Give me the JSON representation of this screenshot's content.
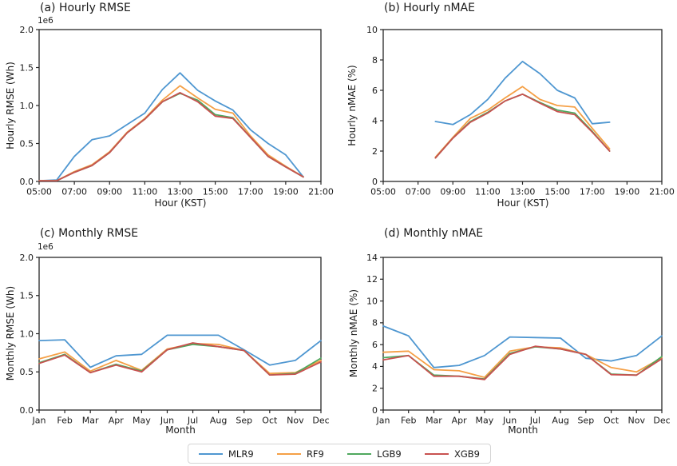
{
  "legend": {
    "items": [
      {
        "label": "MLR9",
        "color": "#4f97d1"
      },
      {
        "label": "RF9",
        "color": "#f5a046"
      },
      {
        "label": "LGB9",
        "color": "#4fa85e"
      },
      {
        "label": "XGB9",
        "color": "#c85250"
      }
    ]
  },
  "chart_data": [
    {
      "type": "line",
      "title": "(a) Hourly RMSE",
      "xlabel": "Hour (KST)",
      "ylabel": "Hourly RMSE (Wh)",
      "y_offset_label": "1e6",
      "xlim": [
        5,
        21
      ],
      "ylim": [
        0,
        2
      ],
      "grid": false,
      "xticks": [
        5,
        7,
        9,
        11,
        13,
        15,
        17,
        19,
        21
      ],
      "xtick_labels": [
        "05:00",
        "07:00",
        "09:00",
        "11:00",
        "13:00",
        "15:00",
        "17:00",
        "19:00",
        "21:00"
      ],
      "yticks": [
        0,
        0.5,
        1.0,
        1.5,
        2.0
      ],
      "ytick_labels": [
        "0.0",
        "0.5",
        "1.0",
        "1.5",
        "2.0"
      ],
      "x": [
        5,
        6,
        7,
        8,
        9,
        10,
        11,
        12,
        13,
        14,
        15,
        16,
        17,
        18,
        19,
        20
      ],
      "series": [
        {
          "name": "MLR9",
          "color": "#4f97d1",
          "values": [
            0.01,
            0.02,
            0.33,
            0.55,
            0.6,
            0.75,
            0.9,
            1.21,
            1.43,
            1.2,
            1.06,
            0.94,
            0.68,
            0.5,
            0.35,
            0.06
          ]
        },
        {
          "name": "RF9",
          "color": "#f5a046",
          "values": [
            0.01,
            0.01,
            0.13,
            0.22,
            0.39,
            0.65,
            0.83,
            1.07,
            1.26,
            1.1,
            0.95,
            0.9,
            0.6,
            0.35,
            0.2,
            0.06
          ]
        },
        {
          "name": "LGB9",
          "color": "#4fa85e",
          "values": [
            0.01,
            0.01,
            0.12,
            0.21,
            0.38,
            0.64,
            0.82,
            1.05,
            1.16,
            1.07,
            0.88,
            0.84,
            0.58,
            0.33,
            0.19,
            0.06
          ]
        },
        {
          "name": "XGB9",
          "color": "#c85250",
          "values": [
            0.01,
            0.01,
            0.12,
            0.21,
            0.38,
            0.64,
            0.82,
            1.05,
            1.17,
            1.05,
            0.86,
            0.83,
            0.58,
            0.33,
            0.19,
            0.06
          ]
        }
      ]
    },
    {
      "type": "line",
      "title": "(b) Hourly nMAE",
      "xlabel": "Hour (KST)",
      "ylabel": "Hourly nMAE (%)",
      "y_offset_label": "",
      "xlim": [
        5,
        21
      ],
      "ylim": [
        0,
        10
      ],
      "grid": false,
      "xticks": [
        5,
        7,
        9,
        11,
        13,
        15,
        17,
        19,
        21
      ],
      "xtick_labels": [
        "05:00",
        "07:00",
        "09:00",
        "11:00",
        "13:00",
        "15:00",
        "17:00",
        "19:00",
        "21:00"
      ],
      "yticks": [
        0,
        2,
        4,
        6,
        8,
        10
      ],
      "ytick_labels": [
        "0",
        "2",
        "4",
        "6",
        "8",
        "10"
      ],
      "x": [
        8,
        9,
        10,
        11,
        12,
        13,
        14,
        15,
        16,
        17,
        18
      ],
      "series": [
        {
          "name": "MLR9",
          "color": "#4f97d1",
          "values": [
            3.95,
            3.75,
            4.4,
            5.4,
            6.8,
            7.9,
            7.1,
            6.0,
            5.5,
            3.8,
            3.9
          ]
        },
        {
          "name": "RF9",
          "color": "#f5a046",
          "values": [
            1.6,
            2.9,
            4.15,
            4.7,
            5.5,
            6.25,
            5.4,
            5.0,
            4.9,
            3.5,
            2.15
          ]
        },
        {
          "name": "LGB9",
          "color": "#4fa85e",
          "values": [
            1.55,
            2.85,
            3.95,
            4.55,
            5.3,
            5.75,
            5.2,
            4.7,
            4.5,
            3.3,
            2.0
          ]
        },
        {
          "name": "XGB9",
          "color": "#c85250",
          "values": [
            1.55,
            2.85,
            3.9,
            4.5,
            5.3,
            5.75,
            5.15,
            4.6,
            4.4,
            3.25,
            2.0
          ]
        }
      ]
    },
    {
      "type": "line",
      "title": "(c) Monthly RMSE",
      "xlabel": "Month",
      "ylabel": "Monthly RMSE (Wh)",
      "y_offset_label": "1e6",
      "xlim": [
        0,
        11
      ],
      "ylim": [
        0,
        2
      ],
      "grid": false,
      "categories": [
        "Jan",
        "Feb",
        "Mar",
        "Apr",
        "May",
        "Jun",
        "Jul",
        "Aug",
        "Sep",
        "Oct",
        "Nov",
        "Dec"
      ],
      "xticks": [
        0,
        1,
        2,
        3,
        4,
        5,
        6,
        7,
        8,
        9,
        10,
        11
      ],
      "xtick_labels": [
        "Jan",
        "Feb",
        "Mar",
        "Apr",
        "May",
        "Jun",
        "Jul",
        "Aug",
        "Sep",
        "Oct",
        "Nov",
        "Dec"
      ],
      "yticks": [
        0,
        0.5,
        1.0,
        1.5,
        2.0
      ],
      "ytick_labels": [
        "0.0",
        "0.5",
        "1.0",
        "1.5",
        "2.0"
      ],
      "x": [
        0,
        1,
        2,
        3,
        4,
        5,
        6,
        7,
        8,
        9,
        10,
        11
      ],
      "series": [
        {
          "name": "MLR9",
          "color": "#4f97d1",
          "values": [
            0.91,
            0.92,
            0.56,
            0.71,
            0.73,
            0.98,
            0.98,
            0.98,
            0.79,
            0.59,
            0.65,
            0.91
          ]
        },
        {
          "name": "RF9",
          "color": "#f5a046",
          "values": [
            0.67,
            0.76,
            0.51,
            0.65,
            0.52,
            0.8,
            0.87,
            0.86,
            0.78,
            0.48,
            0.49,
            0.65
          ]
        },
        {
          "name": "LGB9",
          "color": "#4fa85e",
          "values": [
            0.62,
            0.73,
            0.49,
            0.6,
            0.51,
            0.79,
            0.86,
            0.83,
            0.78,
            0.46,
            0.48,
            0.68
          ]
        },
        {
          "name": "XGB9",
          "color": "#c85250",
          "values": [
            0.61,
            0.72,
            0.49,
            0.59,
            0.5,
            0.79,
            0.88,
            0.83,
            0.78,
            0.46,
            0.47,
            0.63
          ]
        }
      ]
    },
    {
      "type": "line",
      "title": "(d) Monthly nMAE",
      "xlabel": "Month",
      "ylabel": "Monthly nMAE (%)",
      "y_offset_label": "",
      "xlim": [
        0,
        11
      ],
      "ylim": [
        0,
        14
      ],
      "grid": false,
      "categories": [
        "Jan",
        "Feb",
        "Mar",
        "Apr",
        "May",
        "Jun",
        "Jul",
        "Aug",
        "Sep",
        "Oct",
        "Nov",
        "Dec"
      ],
      "xticks": [
        0,
        1,
        2,
        3,
        4,
        5,
        6,
        7,
        8,
        9,
        10,
        11
      ],
      "xtick_labels": [
        "Jan",
        "Feb",
        "Mar",
        "Apr",
        "May",
        "Jun",
        "Jul",
        "Aug",
        "Sep",
        "Oct",
        "Nov",
        "Dec"
      ],
      "yticks": [
        0,
        2,
        4,
        6,
        8,
        10,
        12,
        14
      ],
      "ytick_labels": [
        "0",
        "2",
        "4",
        "6",
        "8",
        "10",
        "12",
        "14"
      ],
      "x": [
        0,
        1,
        2,
        3,
        4,
        5,
        6,
        7,
        8,
        9,
        10,
        11
      ],
      "series": [
        {
          "name": "MLR9",
          "color": "#4f97d1",
          "values": [
            7.7,
            6.8,
            3.9,
            4.1,
            5.0,
            6.7,
            6.65,
            6.6,
            4.75,
            4.5,
            5.0,
            6.8
          ]
        },
        {
          "name": "RF9",
          "color": "#f5a046",
          "values": [
            5.3,
            5.4,
            3.7,
            3.6,
            3.0,
            5.4,
            5.8,
            5.7,
            5.1,
            3.9,
            3.5,
            4.8
          ]
        },
        {
          "name": "LGB9",
          "color": "#4fa85e",
          "values": [
            4.8,
            5.0,
            3.2,
            3.1,
            2.85,
            5.2,
            5.8,
            5.6,
            5.1,
            3.3,
            3.2,
            4.9
          ]
        },
        {
          "name": "XGB9",
          "color": "#c85250",
          "values": [
            4.6,
            5.0,
            3.1,
            3.1,
            2.8,
            5.1,
            5.85,
            5.6,
            5.1,
            3.25,
            3.2,
            4.7
          ]
        }
      ]
    }
  ]
}
